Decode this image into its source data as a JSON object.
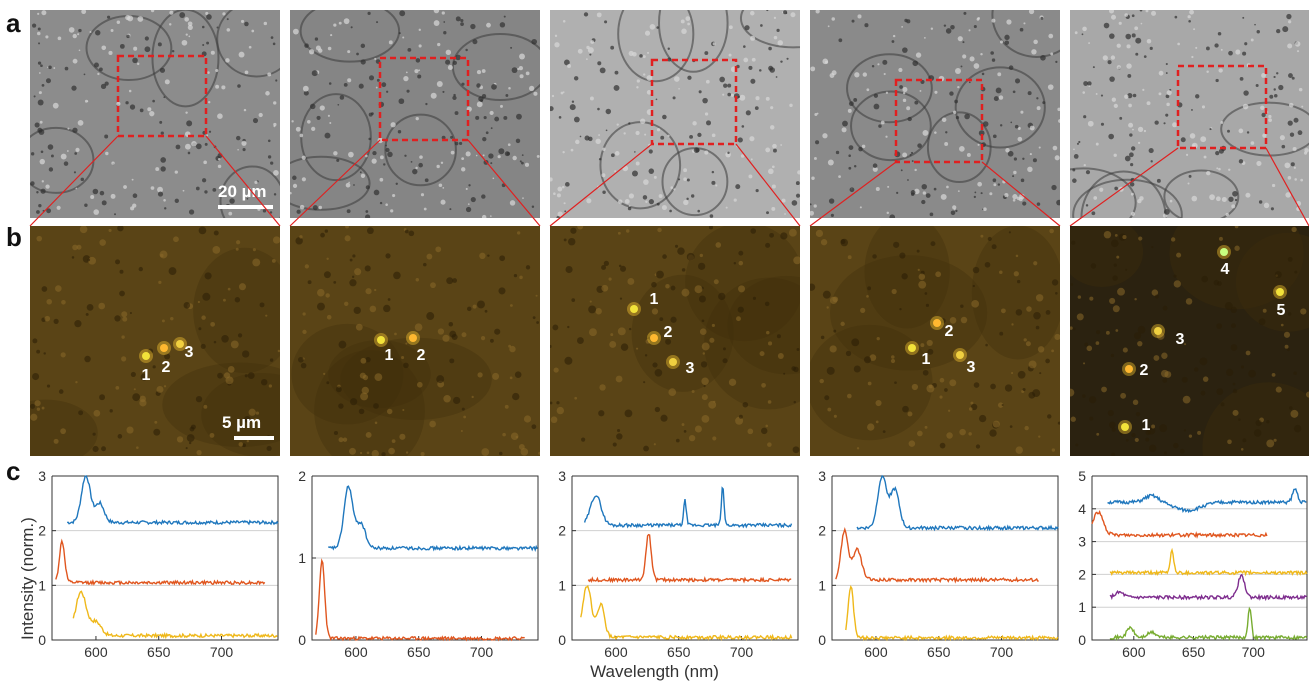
{
  "panels": {
    "a": "a",
    "b": "b",
    "c": "c"
  },
  "scalebars": {
    "a": "20 µm",
    "b": "5 µm"
  },
  "spot_labels": [
    [
      "1",
      "2",
      "3"
    ],
    [
      "1",
      "2"
    ],
    [
      "1",
      "2",
      "3"
    ],
    [
      "1",
      "2",
      "3"
    ],
    [
      "1",
      "2",
      "3",
      "4",
      "5"
    ]
  ],
  "axis": {
    "ylabel": "Intensity (norm.)",
    "xlabel": "Wavelength (nm)"
  },
  "colors": {
    "series1": "#1f77bd",
    "series2": "#e0561f",
    "series3": "#efb81a",
    "series4": "#7e2d8e",
    "series5": "#77ac30",
    "roi": "#e02020"
  },
  "chart_data": [
    {
      "type": "line",
      "xlim": [
        565,
        745
      ],
      "ylim": [
        0,
        3
      ],
      "xticks": [
        600,
        650,
        700
      ],
      "yticks": [
        0,
        1,
        2,
        3
      ],
      "series": [
        {
          "offset": 2,
          "peaks": [
            [
              592,
              0.85,
              5
            ],
            [
              603,
              0.35,
              5
            ]
          ],
          "start": 577,
          "end": 745,
          "base": 0.15
        },
        {
          "offset": 1,
          "peaks": [
            [
              573,
              0.75,
              3
            ]
          ],
          "start": 568,
          "end": 735,
          "base": 0.05
        },
        {
          "offset": 0,
          "peaks": [
            [
              588,
              0.8,
              6
            ],
            [
              600,
              0.25,
              6
            ]
          ],
          "start": 582,
          "end": 745,
          "base": 0.08
        }
      ]
    },
    {
      "type": "line",
      "xlim": [
        565,
        745
      ],
      "ylim": [
        0,
        2
      ],
      "xticks": [
        600,
        650,
        700
      ],
      "yticks": [
        0,
        1,
        2
      ],
      "series": [
        {
          "offset": 1,
          "peaks": [
            [
              594,
              0.75,
              5
            ],
            [
              604,
              0.3,
              5
            ]
          ],
          "start": 578,
          "end": 745,
          "base": 0.12
        },
        {
          "offset": 0,
          "peaks": [
            [
              573,
              0.95,
              3
            ]
          ],
          "start": 568,
          "end": 735,
          "base": 0.02
        }
      ]
    },
    {
      "type": "line",
      "xlim": [
        565,
        745
      ],
      "ylim": [
        0,
        3
      ],
      "xticks": [
        600,
        650,
        700
      ],
      "yticks": [
        0,
        1,
        2,
        3
      ],
      "series": [
        {
          "offset": 2,
          "peaks": [
            [
              584,
              0.55,
              6
            ],
            [
              655,
              0.45,
              1.5
            ],
            [
              685,
              0.7,
              1.5
            ]
          ],
          "start": 575,
          "end": 740,
          "base": 0.1
        },
        {
          "offset": 1,
          "peaks": [
            [
              626,
              0.85,
              3
            ]
          ],
          "start": 578,
          "end": 740,
          "base": 0.1
        },
        {
          "offset": 0,
          "peaks": [
            [
              577,
              0.95,
              5
            ],
            [
              588,
              0.6,
              4
            ]
          ],
          "start": 572,
          "end": 740,
          "base": 0.05
        }
      ]
    },
    {
      "type": "line",
      "xlim": [
        565,
        745
      ],
      "ylim": [
        0,
        3
      ],
      "xticks": [
        600,
        650,
        700
      ],
      "yticks": [
        0,
        1,
        2,
        3
      ],
      "series": [
        {
          "offset": 2,
          "peaks": [
            [
              605,
              0.95,
              5
            ],
            [
              615,
              0.7,
              5
            ]
          ],
          "start": 585,
          "end": 745,
          "base": 0.05
        },
        {
          "offset": 1,
          "peaks": [
            [
              575,
              0.9,
              4
            ],
            [
              585,
              0.55,
              5
            ]
          ],
          "start": 568,
          "end": 730,
          "base": 0.1
        },
        {
          "offset": 0,
          "peaks": [
            [
              580,
              0.95,
              3
            ]
          ],
          "start": 576,
          "end": 745,
          "base": 0.04
        }
      ]
    },
    {
      "type": "line",
      "xlim": [
        565,
        745
      ],
      "ylim": [
        0,
        5
      ],
      "xticks": [
        600,
        650,
        700
      ],
      "yticks": [
        0,
        1,
        2,
        3,
        4,
        5
      ],
      "series": [
        {
          "offset": 4,
          "peaks": [
            [
              615,
              0.2,
              8
            ],
            [
              735,
              0.4,
              3
            ]
          ],
          "start": 578,
          "end": 745,
          "base": 0.2,
          "dip": [
            645,
            0.25,
            15
          ]
        },
        {
          "offset": 3,
          "peaks": [
            [
              570,
              0.7,
              6
            ]
          ],
          "start": 565,
          "end": 712,
          "base": 0.2
        },
        {
          "offset": 2,
          "peaks": [
            [
              632,
              0.7,
              2
            ]
          ],
          "start": 580,
          "end": 745,
          "base": 0.05
        },
        {
          "offset": 1,
          "peaks": [
            [
              588,
              0.15,
              5
            ],
            [
              690,
              0.65,
              4
            ]
          ],
          "start": 580,
          "end": 745,
          "base": 0.3
        },
        {
          "offset": 0,
          "peaks": [
            [
              597,
              0.3,
              4
            ],
            [
              615,
              0.15,
              5
            ],
            [
              697,
              0.9,
              2
            ]
          ],
          "start": 580,
          "end": 745,
          "base": 0.08
        }
      ]
    }
  ]
}
